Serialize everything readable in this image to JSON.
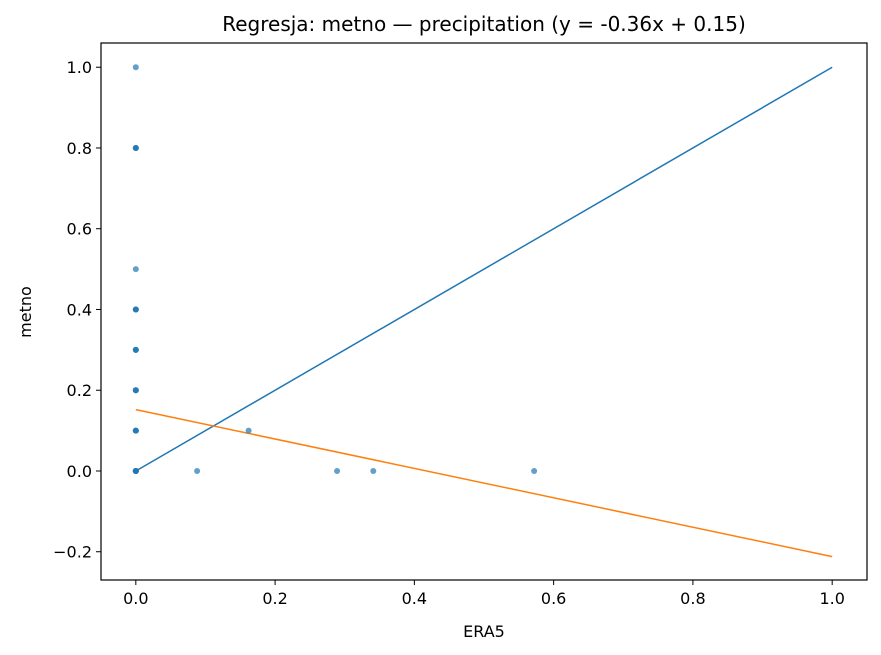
{
  "chart_data": {
    "type": "scatter",
    "title": "Regresja: metno — precipitation (y = -0.36x + 0.15)",
    "xlabel": "ERA5",
    "ylabel": "metno",
    "xlim": [
      -0.05,
      1.05
    ],
    "ylim": [
      -0.27,
      1.06
    ],
    "xticks": [
      0.0,
      0.2,
      0.4,
      0.6,
      0.8,
      1.0
    ],
    "xtick_labels": [
      "0.0",
      "0.2",
      "0.4",
      "0.6",
      "0.8",
      "1.0"
    ],
    "yticks": [
      -0.2,
      0.0,
      0.2,
      0.4,
      0.6,
      0.8,
      1.0
    ],
    "ytick_labels": [
      "−0.2",
      "0.0",
      "0.2",
      "0.4",
      "0.6",
      "0.8",
      "1.0"
    ],
    "grid": false,
    "series": [
      {
        "kind": "scatter",
        "color": "#1f77b4",
        "points": [
          [
            0.0,
            1.0
          ],
          [
            0.0,
            0.8
          ],
          [
            0.0,
            0.8
          ],
          [
            0.0,
            0.8
          ],
          [
            0.0,
            0.5
          ],
          [
            0.0,
            0.4
          ],
          [
            0.0,
            0.4
          ],
          [
            0.0,
            0.4
          ],
          [
            0.0,
            0.3
          ],
          [
            0.0,
            0.3
          ],
          [
            0.0,
            0.3
          ],
          [
            0.0,
            0.2
          ],
          [
            0.0,
            0.2
          ],
          [
            0.0,
            0.2
          ],
          [
            0.0,
            0.1
          ],
          [
            0.0,
            0.1
          ],
          [
            0.0,
            0.1
          ],
          [
            0.0,
            0.0
          ],
          [
            0.0,
            0.0
          ],
          [
            0.0,
            0.0
          ],
          [
            0.0,
            0.0
          ],
          [
            0.0,
            0.0
          ],
          [
            0.088,
            0.0
          ],
          [
            0.162,
            0.1
          ],
          [
            0.289,
            0.0
          ],
          [
            0.341,
            0.0
          ],
          [
            0.572,
            0.0
          ]
        ]
      },
      {
        "kind": "line",
        "color": "#1f77b4",
        "x": [
          0.0,
          1.0
        ],
        "y": [
          0.0,
          1.0
        ]
      },
      {
        "kind": "line",
        "color": "#ff7f0e",
        "x": [
          0.0,
          1.0
        ],
        "y": [
          0.152,
          -0.212
        ]
      }
    ]
  }
}
